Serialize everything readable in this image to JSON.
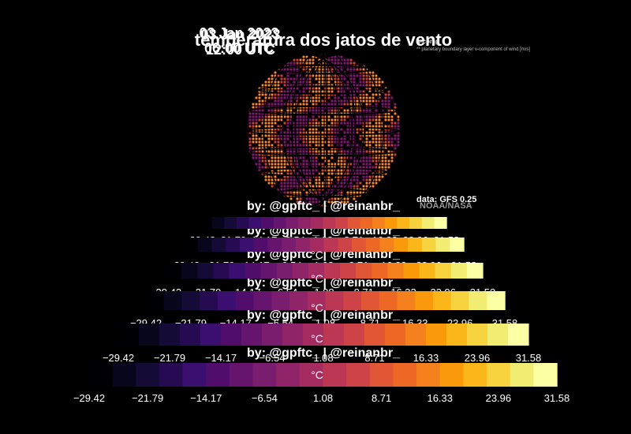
{
  "header": {
    "title": "temperatura dos jatos de vento",
    "dates": [
      "03 Jan 2023",
      "03 Jan 2023"
    ],
    "times": [
      "06:00 UTC",
      "12:00 UTC"
    ],
    "variable_name": "u-comp",
    "variable_note": "** planetary boundary layer v-component of wind [m/s]"
  },
  "credit": "by: @gpftc_ | @reinanbr_",
  "source": {
    "model": "data: GFS 0.25",
    "provider": "NOAA/NASA"
  },
  "colors": {
    "background": "#000000",
    "text": "#ffffff",
    "colormap": "inferno",
    "globe_dot_colors": [
      "#f28e2b",
      "#c8452c",
      "#7a1d6f"
    ]
  },
  "chart_data": {
    "type": "heatmap",
    "colorbar_unit": "°C",
    "colorbar_ticks": [
      "−29.42",
      "−21.79",
      "−14.17",
      "−6.54",
      "1.08",
      "8.71",
      "16.33",
      "23.96",
      "31.58"
    ],
    "colorbar_range": [
      -29.42,
      31.58
    ],
    "colorbar_stops": [
      "#000004",
      "#08061d",
      "#150b37",
      "#270b52",
      "#3b0f70",
      "#500d6c",
      "#65156e",
      "#7a1d6f",
      "#8f2469",
      "#a52c60",
      "#bb3754",
      "#ce4347",
      "#e15635",
      "#ec6824",
      "#f4811d",
      "#fa9a0b",
      "#fbb61a",
      "#f6d23f",
      "#f1ec72",
      "#fcffa4"
    ],
    "plot": "globe projection of wind temperature field",
    "overlapping_colorbars": 6
  }
}
